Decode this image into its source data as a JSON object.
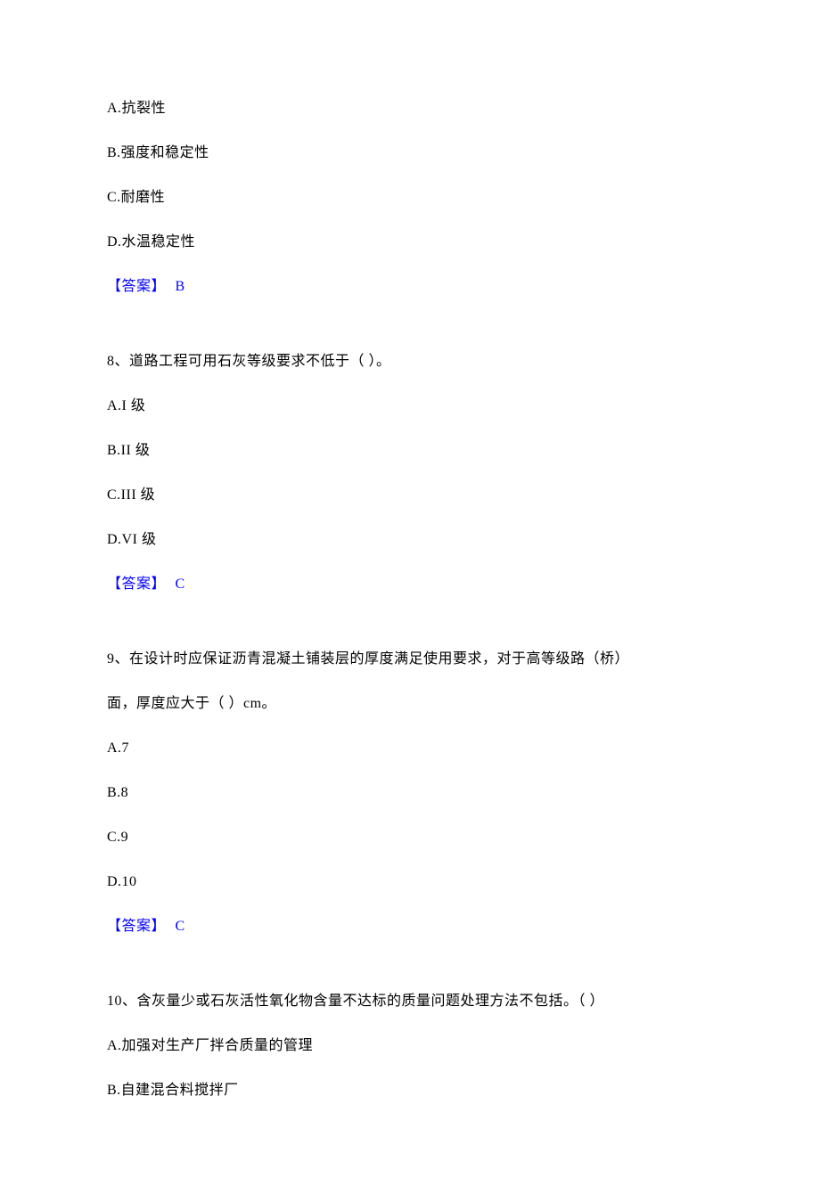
{
  "text_color": "#000000",
  "answer_color": "#0000ff",
  "background_color": "#ffffff",
  "font_family": "SimSun",
  "font_size_pt": 12,
  "q7": {
    "options": {
      "A": "A.抗裂性",
      "B": "B.强度和稳定性",
      "C": "C.耐磨性",
      "D": "D.水温稳定性"
    },
    "answer_label": "【答案】",
    "answer_letter": "B"
  },
  "q8": {
    "stem": "8、道路工程可用石灰等级要求不低于（ ）。",
    "options": {
      "A": "A.I 级",
      "B": "B.II 级",
      "C": "C.III 级",
      "D": "D.VI 级"
    },
    "answer_label": "【答案】",
    "answer_letter": "C"
  },
  "q9": {
    "stem_line1": "9、在设计时应保证沥青混凝土铺装层的厚度满足使用要求，对于高等级路（桥）",
    "stem_line2": "面，厚度应大于（ ）cm。",
    "options": {
      "A": "A.7",
      "B": "B.8",
      "C": "C.9",
      "D": "D.10"
    },
    "answer_label": "【答案】",
    "answer_letter": "C"
  },
  "q10": {
    "stem": "10、含灰量少或石灰活性氧化物含量不达标的质量问题处理方法不包括。（ ）",
    "options": {
      "A": "A.加强对生产厂拌合质量的管理",
      "B": "B.自建混合料搅拌厂"
    }
  }
}
